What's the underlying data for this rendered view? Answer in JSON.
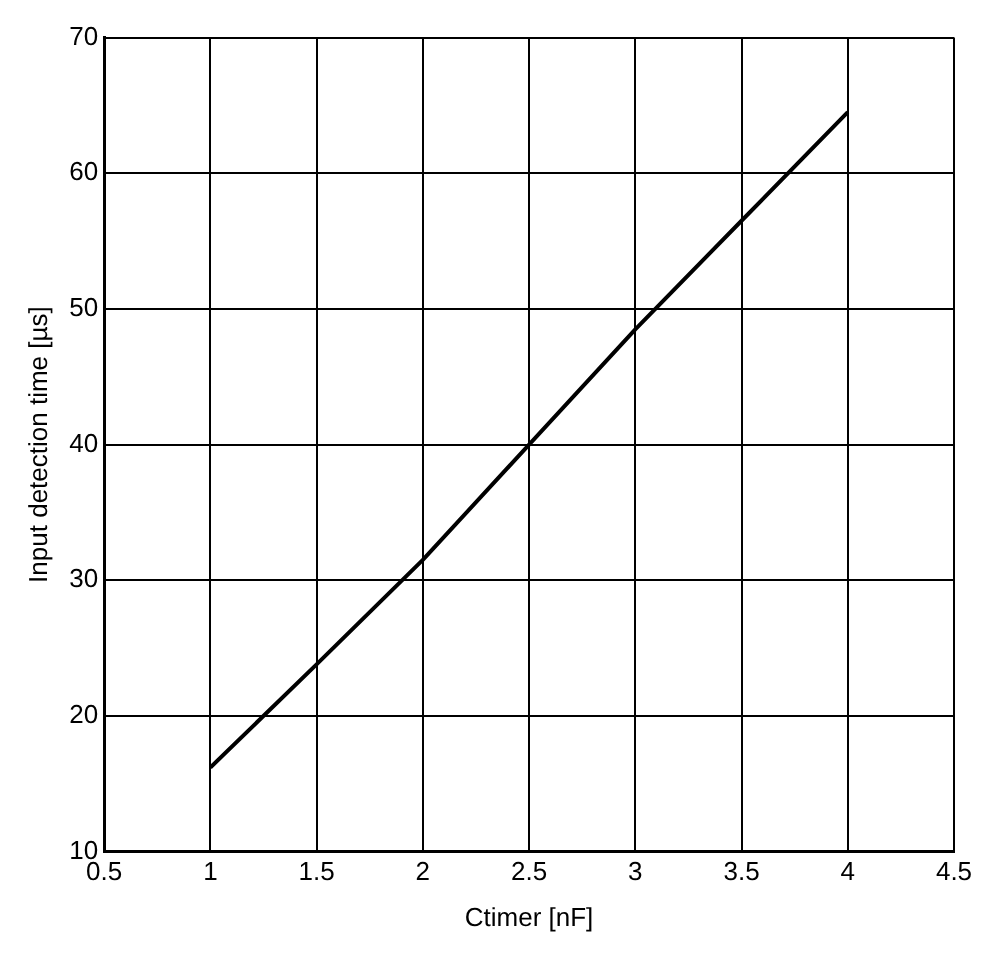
{
  "chart_data": {
    "type": "line",
    "xlabel": "Ctimer [nF]",
    "ylabel": "Input detection time [µs]",
    "x": [
      1,
      1.5,
      2,
      2.5,
      3,
      3.5,
      4
    ],
    "series": [
      {
        "color": "#000000",
        "values": [
          16.2,
          23.8,
          31.5,
          40,
          48.5,
          56.5,
          64.5
        ]
      }
    ],
    "xlim": [
      0.5,
      4.5
    ],
    "xticks": [
      0.5,
      1,
      1.5,
      2,
      2.5,
      3,
      3.5,
      4,
      4.5
    ],
    "ylim": [
      10,
      70
    ],
    "yticks": [
      10,
      20,
      30,
      40,
      50,
      60,
      70
    ],
    "grid": true,
    "legend": false,
    "marker": "none",
    "line_style": "solid"
  }
}
